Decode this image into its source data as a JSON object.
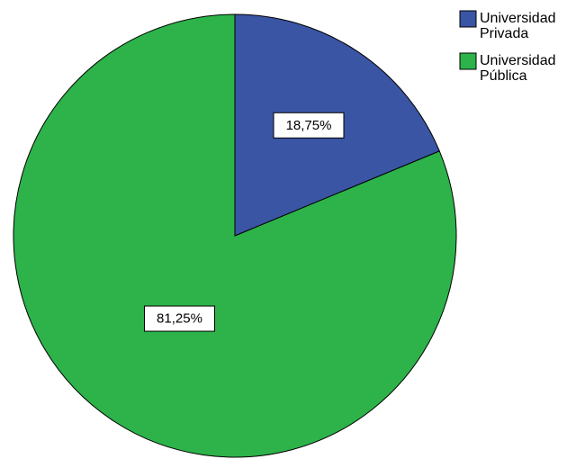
{
  "chart_data": {
    "type": "pie",
    "categories": [
      "Universidad Privada",
      "Universidad Pública"
    ],
    "values": [
      18.75,
      81.25
    ],
    "data_labels": [
      "18,75%",
      "81,25%"
    ],
    "colors": [
      "#3a55a4",
      "#2db34a"
    ],
    "legend": {
      "placement": "top-right",
      "entries": [
        {
          "lines": [
            "Universidad",
            "Privada"
          ],
          "color": "#3a55a4"
        },
        {
          "lines": [
            "Universidad",
            "Pública"
          ],
          "color": "#2db34a"
        }
      ]
    },
    "start_angle": "12 o'clock",
    "direction": "clockwise"
  }
}
